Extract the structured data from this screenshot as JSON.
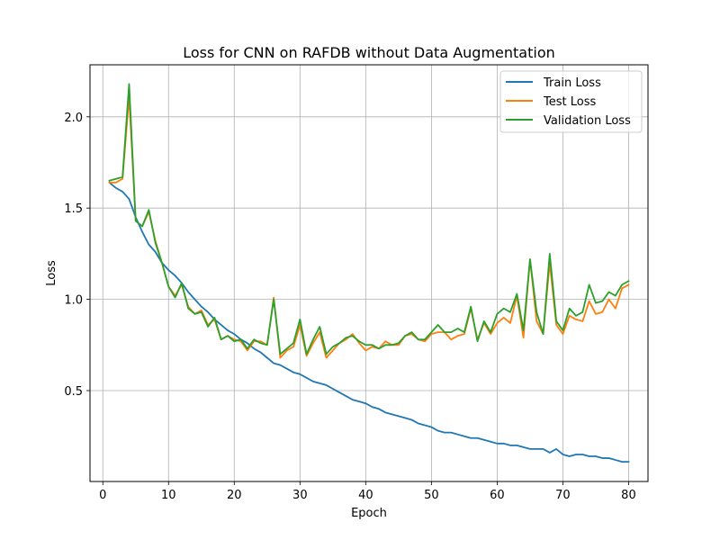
{
  "chart_data": {
    "type": "line",
    "title": "Loss for CNN on RAFDB without Data Augmentation",
    "xlabel": "Epoch",
    "ylabel": "Loss",
    "xlim": [
      -1.95,
      82.95
    ],
    "ylim": [
      0.002,
      2.285
    ],
    "xticks": [
      0,
      10,
      20,
      30,
      40,
      50,
      60,
      70,
      80
    ],
    "yticks": [
      0.5,
      1.0,
      1.5,
      2.0
    ],
    "xtick_labels": [
      "0",
      "10",
      "20",
      "30",
      "40",
      "50",
      "60",
      "70",
      "80"
    ],
    "ytick_labels": [
      "0.5",
      "1.0",
      "1.5",
      "2.0"
    ],
    "grid": true,
    "legend_position": "top-right",
    "x": [
      1,
      2,
      3,
      4,
      5,
      6,
      7,
      8,
      9,
      10,
      11,
      12,
      13,
      14,
      15,
      16,
      17,
      18,
      19,
      20,
      21,
      22,
      23,
      24,
      25,
      26,
      27,
      28,
      29,
      30,
      31,
      32,
      33,
      34,
      35,
      36,
      37,
      38,
      39,
      40,
      41,
      42,
      43,
      44,
      45,
      46,
      47,
      48,
      49,
      50,
      51,
      52,
      53,
      54,
      55,
      56,
      57,
      58,
      59,
      60,
      61,
      62,
      63,
      64,
      65,
      66,
      67,
      68,
      69,
      70,
      71,
      72,
      73,
      74,
      75,
      76,
      77,
      78,
      79,
      80
    ],
    "series": [
      {
        "name": "Train Loss",
        "color": "#1f77b4",
        "values": [
          1.64,
          1.61,
          1.59,
          1.55,
          1.45,
          1.37,
          1.3,
          1.26,
          1.2,
          1.16,
          1.13,
          1.09,
          1.04,
          1.0,
          0.96,
          0.93,
          0.89,
          0.86,
          0.83,
          0.81,
          0.78,
          0.76,
          0.73,
          0.71,
          0.68,
          0.65,
          0.64,
          0.62,
          0.6,
          0.59,
          0.57,
          0.55,
          0.54,
          0.53,
          0.51,
          0.49,
          0.47,
          0.45,
          0.44,
          0.43,
          0.41,
          0.4,
          0.38,
          0.37,
          0.36,
          0.35,
          0.34,
          0.32,
          0.31,
          0.3,
          0.28,
          0.27,
          0.27,
          0.26,
          0.25,
          0.24,
          0.24,
          0.23,
          0.22,
          0.21,
          0.21,
          0.2,
          0.2,
          0.19,
          0.18,
          0.18,
          0.18,
          0.16,
          0.18,
          0.15,
          0.14,
          0.15,
          0.15,
          0.14,
          0.14,
          0.13,
          0.13,
          0.12,
          0.11,
          0.11
        ]
      },
      {
        "name": "Test Loss",
        "color": "#ff7f0e",
        "values": [
          1.64,
          1.64,
          1.66,
          2.11,
          1.43,
          1.4,
          1.48,
          1.32,
          1.2,
          1.07,
          1.02,
          1.08,
          0.96,
          0.92,
          0.94,
          0.86,
          0.89,
          0.78,
          0.8,
          0.78,
          0.77,
          0.72,
          0.77,
          0.77,
          0.75,
          1.01,
          0.68,
          0.72,
          0.74,
          0.86,
          0.69,
          0.76,
          0.82,
          0.68,
          0.72,
          0.76,
          0.78,
          0.81,
          0.76,
          0.72,
          0.74,
          0.73,
          0.77,
          0.75,
          0.75,
          0.8,
          0.81,
          0.78,
          0.77,
          0.81,
          0.82,
          0.82,
          0.78,
          0.8,
          0.81,
          0.95,
          0.78,
          0.87,
          0.81,
          0.87,
          0.9,
          0.87,
          1.02,
          0.79,
          1.22,
          0.88,
          0.81,
          1.2,
          0.86,
          0.81,
          0.91,
          0.89,
          0.88,
          0.99,
          0.92,
          0.93,
          1.0,
          0.95,
          1.06,
          1.08
        ]
      },
      {
        "name": "Validation Loss",
        "color": "#2ca02c",
        "values": [
          1.65,
          1.66,
          1.67,
          2.18,
          1.43,
          1.4,
          1.49,
          1.31,
          1.2,
          1.07,
          1.01,
          1.09,
          0.95,
          0.92,
          0.93,
          0.85,
          0.9,
          0.78,
          0.8,
          0.77,
          0.78,
          0.73,
          0.78,
          0.76,
          0.75,
          1.0,
          0.7,
          0.73,
          0.76,
          0.89,
          0.7,
          0.78,
          0.85,
          0.7,
          0.74,
          0.76,
          0.79,
          0.8,
          0.77,
          0.75,
          0.75,
          0.73,
          0.75,
          0.75,
          0.76,
          0.8,
          0.82,
          0.78,
          0.78,
          0.82,
          0.86,
          0.82,
          0.82,
          0.84,
          0.82,
          0.96,
          0.77,
          0.88,
          0.82,
          0.92,
          0.95,
          0.93,
          1.03,
          0.83,
          1.22,
          0.93,
          0.81,
          1.25,
          0.88,
          0.83,
          0.95,
          0.91,
          0.93,
          1.08,
          0.98,
          0.99,
          1.04,
          1.02,
          1.08,
          1.1
        ]
      }
    ]
  }
}
